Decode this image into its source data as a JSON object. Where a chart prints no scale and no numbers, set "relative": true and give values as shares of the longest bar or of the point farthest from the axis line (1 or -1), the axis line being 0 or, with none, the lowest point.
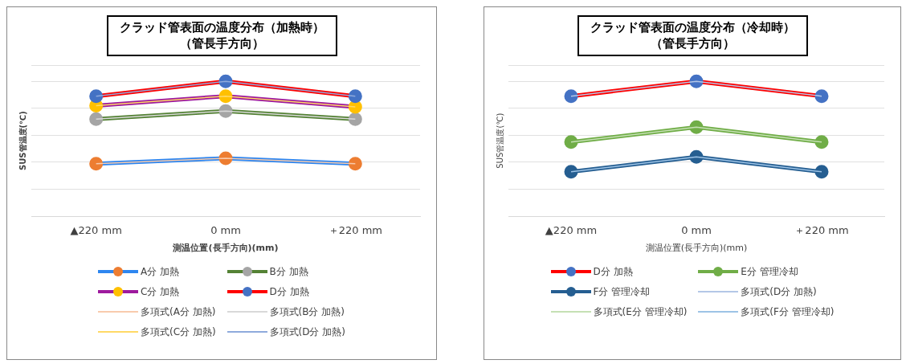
{
  "chart_data": [
    {
      "type": "line",
      "title": "クラッド管表面の温度分布（加熱時）",
      "subtitle": "（管長手方向）",
      "xlabel": "測温位置(長手方向)(mm)",
      "ylabel": "SUS管温度(℃)",
      "categories": [
        "▲220 mm",
        "0 mm",
        "＋220 mm"
      ],
      "relative": true,
      "grid": "y",
      "legend": "bottom",
      "marker": "circle",
      "series": [
        {
          "name": "A分  加熱",
          "color": "#2e86f0",
          "colors": [
            "#ed7d31",
            "#ed7d31",
            "#ed7d31"
          ],
          "values": [
            0.39,
            0.43,
            0.39
          ]
        },
        {
          "name": "B分  加熱",
          "color": "#548235",
          "colors": [
            "#a5a5a5",
            "#a5a5a5",
            "#a5a5a5"
          ],
          "values": [
            0.72,
            0.78,
            0.72
          ]
        },
        {
          "name": "C分  加熱",
          "color": "#9e1a9e",
          "colors": [
            "#ffc000",
            "#ffc000",
            "#ffc000"
          ],
          "values": [
            0.82,
            0.89,
            0.81
          ]
        },
        {
          "name": "D分  加熱",
          "color": "#ff0000",
          "colors": [
            "#4472c4",
            "#4472c4",
            "#4472c4"
          ],
          "values": [
            0.89,
            1,
            0.89
          ]
        },
        {
          "name": "多項式(A分  加熱)",
          "color": "#f8cbad",
          "marker": "none",
          "values": [
            0.39,
            0.43,
            0.39
          ]
        },
        {
          "name": "多項式(B分  加熱)",
          "color": "#d9d9d9",
          "marker": "none",
          "values": [
            0.72,
            0.78,
            0.72
          ]
        },
        {
          "name": "多項式(C分  加熱)",
          "color": "#ffd966",
          "marker": "none",
          "values": [
            0.82,
            0.89,
            0.81
          ]
        },
        {
          "name": "多項式(D分  加熱)",
          "color": "#8faadc",
          "marker": "none",
          "values": [
            0.89,
            1,
            0.89
          ]
        }
      ]
    },
    {
      "type": "line",
      "title": "クラッド管表面の温度分布（冷却時）",
      "subtitle": "（管長手方向）",
      "xlabel": "測温位置(長手方向)(mm)",
      "ylabel": "SUS管温度(℃)",
      "categories": [
        "▲220 mm",
        "0 mm",
        "＋220 mm"
      ],
      "relative": true,
      "grid": "y",
      "legend": "bottom",
      "marker": "circle",
      "series": [
        {
          "name": "D分  加熱",
          "color": "#ff0000",
          "colors": [
            "#4472c4",
            "#4472c4",
            "#4472c4"
          ],
          "values": [
            0.89,
            1,
            0.89
          ]
        },
        {
          "name": "E分  管理冷却",
          "color": "#70ad47",
          "colors": [
            "#70ad47",
            "#70ad47",
            "#70ad47"
          ],
          "values": [
            0.55,
            0.66,
            0.55
          ]
        },
        {
          "name": "F分  管理冷却",
          "color": "#255e91",
          "colors": [
            "#255e91",
            "#255e91",
            "#255e91"
          ],
          "values": [
            0.33,
            0.44,
            0.33
          ]
        },
        {
          "name": "多項式(D分  加熱)",
          "color": "#b4c7e7",
          "marker": "none",
          "values": [
            0.89,
            1,
            0.89
          ]
        },
        {
          "name": "多項式(E分  管理冷却)",
          "color": "#c5e0b4",
          "marker": "none",
          "values": [
            0.55,
            0.66,
            0.55
          ]
        },
        {
          "name": "多項式(F分  管理冷却)",
          "color": "#9dc3e6",
          "marker": "none",
          "values": [
            0.33,
            0.44,
            0.33
          ]
        }
      ]
    }
  ]
}
